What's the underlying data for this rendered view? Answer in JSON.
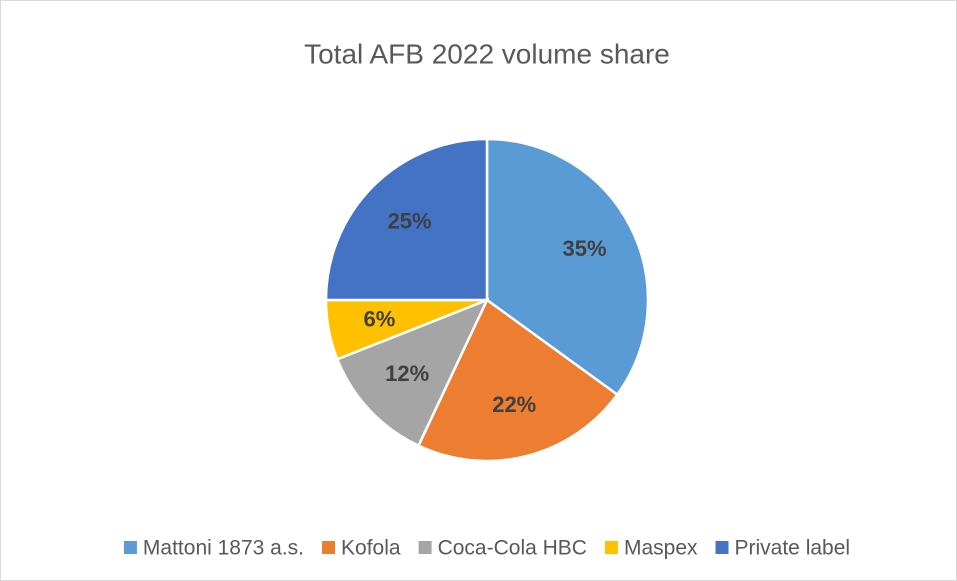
{
  "chart_data": {
    "type": "pie",
    "title": "Total AFB 2022 volume share",
    "categories": [
      "Mattoni 1873 a.s.",
      "Kofola",
      "Coca-Cola HBC",
      "Maspex",
      "Private label"
    ],
    "values": [
      35,
      22,
      12,
      6,
      25
    ],
    "value_labels": [
      "35%",
      "22%",
      "12%",
      "6%",
      "25%"
    ],
    "colors": [
      "#5b9bd5",
      "#ed7d31",
      "#a5a5a5",
      "#ffc000",
      "#4472c4"
    ],
    "legend": "bottom"
  }
}
